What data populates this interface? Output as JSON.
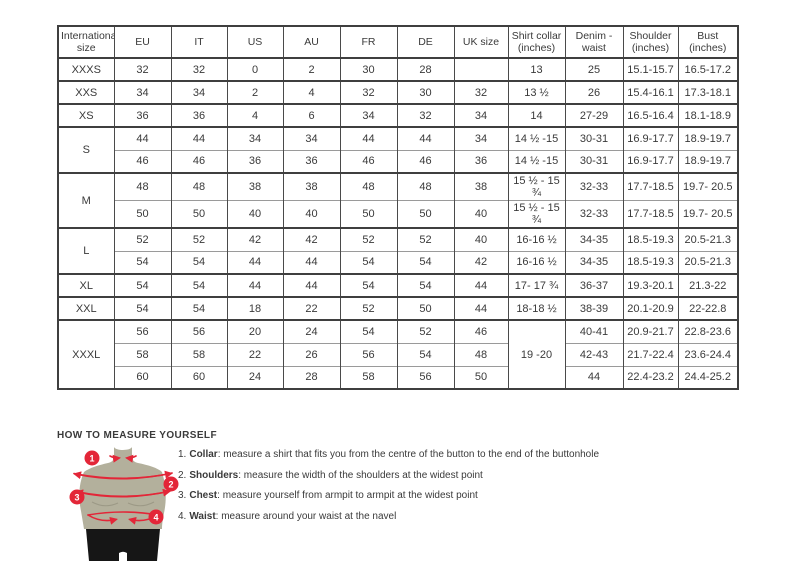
{
  "table": {
    "columns": [
      "International size",
      "EU",
      "IT",
      "US",
      "AU",
      "FR",
      "DE",
      "UK size",
      "Shirt collar (inches)",
      "Denim - waist",
      "Shoulder (inches)",
      "Bust (inches)"
    ],
    "groups": [
      {
        "size": "XXXS",
        "rows": [
          [
            "32",
            "32",
            "0",
            "2",
            "30",
            "28",
            "",
            "13",
            "25",
            "15.1-15.7",
            "16.5-17.2"
          ]
        ]
      },
      {
        "size": "XXS",
        "rows": [
          [
            "34",
            "34",
            "2",
            "4",
            "32",
            "30",
            "32",
            "13 ½",
            "26",
            "15.4-16.1",
            "17.3-18.1"
          ]
        ]
      },
      {
        "size": "XS",
        "rows": [
          [
            "36",
            "36",
            "4",
            "6",
            "34",
            "32",
            "34",
            "14",
            "27-29",
            "16.5-16.4",
            "18.1-18.9"
          ]
        ]
      },
      {
        "size": "S",
        "rows": [
          [
            "44",
            "44",
            "34",
            "34",
            "44",
            "44",
            "34",
            "14 ½ -15",
            "30-31",
            "16.9-17.7",
            "18.9-19.7"
          ],
          [
            "46",
            "46",
            "36",
            "36",
            "46",
            "46",
            "36",
            "14 ½ -15",
            "30-31",
            "16.9-17.7",
            "18.9-19.7"
          ]
        ]
      },
      {
        "size": "M",
        "rows": [
          [
            "48",
            "48",
            "38",
            "38",
            "48",
            "48",
            "38",
            "15 ½ - 15 ¾",
            "32-33",
            "17.7-18.5",
            "19.7- 20.5"
          ],
          [
            "50",
            "50",
            "40",
            "40",
            "50",
            "50",
            "40",
            "15 ½ - 15 ¾",
            "32-33",
            "17.7-18.5",
            "19.7- 20.5"
          ]
        ]
      },
      {
        "size": "L",
        "rows": [
          [
            "52",
            "52",
            "42",
            "42",
            "52",
            "52",
            "40",
            "16-16 ½",
            "34-35",
            "18.5-19.3",
            "20.5-21.3"
          ],
          [
            "54",
            "54",
            "44",
            "44",
            "54",
            "54",
            "42",
            "16-16 ½",
            "34-35",
            "18.5-19.3",
            "20.5-21.3"
          ]
        ]
      },
      {
        "size": "XL",
        "rows": [
          [
            "54",
            "54",
            "44",
            "44",
            "54",
            "54",
            "44",
            "17- 17 ¾",
            "36-37",
            "19.3-20.1",
            "21.3-22"
          ]
        ]
      },
      {
        "size": "XXL",
        "rows": [
          [
            "54",
            "54",
            "18",
            "22",
            "52",
            "50",
            "44",
            "18-18 ½",
            "38-39",
            "20.1-20.9",
            "22-22.8"
          ]
        ]
      },
      {
        "size": "XXXL",
        "collar_merged": "19 -20",
        "rows": [
          [
            "56",
            "56",
            "20",
            "24",
            "54",
            "52",
            "46",
            "",
            "40-41",
            "20.9-21.7",
            "22.8-23.6"
          ],
          [
            "58",
            "58",
            "22",
            "26",
            "56",
            "54",
            "48",
            "",
            "42-43",
            "21.7-22.4",
            "23.6-24.4"
          ],
          [
            "60",
            "60",
            "24",
            "28",
            "58",
            "56",
            "50",
            "",
            "44",
            "22.4-23.2",
            "24.4-25.2"
          ]
        ]
      }
    ]
  },
  "measure": {
    "heading": "HOW TO MEASURE YOURSELF",
    "steps": [
      {
        "num": "1.",
        "label": "Collar",
        "rest": ": measure a shirt that fits you from the centre of the button to the end of the buttonhole"
      },
      {
        "num": "2.",
        "label": "Shoulders",
        "rest": ": measure the width of the shoulders at the widest point"
      },
      {
        "num": "3.",
        "label": "Chest",
        "rest": ": measure yourself from armpit to armpit at the widest point"
      },
      {
        "num": "4.",
        "label": "Waist",
        "rest": ": measure around your waist at the navel"
      }
    ],
    "figure_markers": [
      "1",
      "2",
      "3",
      "4"
    ]
  },
  "colors": {
    "accent_red": "#e32638",
    "mannequin_body": "#b3b09c",
    "mannequin_shorts": "#161616",
    "border_dark": "#3f3f3f",
    "border_light": "#9a9a9a",
    "text": "#3a3a3a"
  }
}
